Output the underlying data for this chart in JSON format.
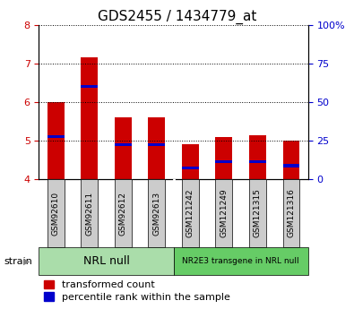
{
  "title": "GDS2455 / 1434779_at",
  "categories": [
    "GSM92610",
    "GSM92611",
    "GSM92612",
    "GSM92613",
    "GSM121242",
    "GSM121249",
    "GSM121315",
    "GSM121316"
  ],
  "red_values": [
    6.0,
    7.15,
    5.6,
    5.6,
    4.9,
    5.1,
    5.15,
    5.0
  ],
  "blue_values": [
    5.1,
    6.4,
    4.9,
    4.9,
    4.3,
    4.45,
    4.45,
    4.35
  ],
  "ymin": 4.0,
  "ymax": 8.0,
  "yticks": [
    4,
    5,
    6,
    7,
    8
  ],
  "right_yticks": [
    0,
    25,
    50,
    75,
    100
  ],
  "right_ytick_labels": [
    "0",
    "25",
    "50",
    "75",
    "100%"
  ],
  "group1_label": "NRL null",
  "group2_label": "NR2E3 transgene in NRL null",
  "bar_width": 0.5,
  "bar_bottom": 4.0,
  "red_color": "#cc0000",
  "blue_color": "#0000cc",
  "group1_bg": "#aaddaa",
  "group2_bg": "#66cc66",
  "xticklabel_bg": "#cccccc",
  "legend_red": "transformed count",
  "legend_blue": "percentile rank within the sample",
  "strain_label": "strain",
  "title_fontsize": 11,
  "tick_fontsize": 8,
  "group_fontsize": 9,
  "legend_fontsize": 8
}
